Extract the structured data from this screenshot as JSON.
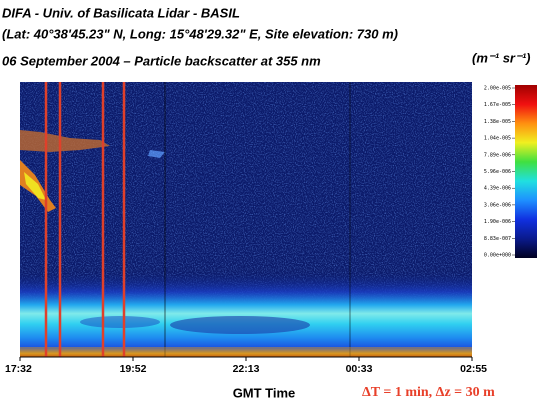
{
  "chart_data": {
    "type": "heatmap",
    "title": "DIFA - Univ. of Basilicata Lidar - BASIL",
    "subtitle": "(Lat: 40°38'45.23\" N, Long: 15°48'29.32\" E, Site elevation: 730 m)",
    "plot_title": "06 September 2004 – Particle backscatter at 355 nm",
    "xlabel": "GMT Time",
    "xticks": [
      "17:32",
      "19:52",
      "22:13",
      "00:33",
      "02:55"
    ],
    "annotation": "ΔT = 1 min, Δz = 30 m",
    "colorbar": {
      "label": "(m⁻¹ sr⁻¹)",
      "lim": [
        0,
        2e-05
      ],
      "colors": [
        "#000020",
        "#0a1a8c",
        "#1030e0",
        "#1e90ff",
        "#20e0e0",
        "#40e040",
        "#f0f020",
        "#ff9010",
        "#f01010",
        "#a00000"
      ],
      "ticks": [
        {
          "value": 2e-05,
          "label": "2.00e-005"
        },
        {
          "value": 1.67e-05,
          "label": "1.67e-005"
        },
        {
          "value": 1.38e-05,
          "label": "1.38e-005"
        },
        {
          "value": 1.04e-05,
          "label": "1.04e-005"
        },
        {
          "value": 7.89e-06,
          "label": "7.89e-006"
        },
        {
          "value": 5.96e-06,
          "label": "5.96e-006"
        },
        {
          "value": 4.39e-06,
          "label": "4.39e-006"
        },
        {
          "value": 3.06e-06,
          "label": "3.06e-006"
        },
        {
          "value": 1.9e-06,
          "label": "1.90e-006"
        },
        {
          "value": 8.83e-07,
          "label": "8.83e-007"
        },
        {
          "value": 0,
          "label": "0.00e+000"
        }
      ]
    }
  }
}
